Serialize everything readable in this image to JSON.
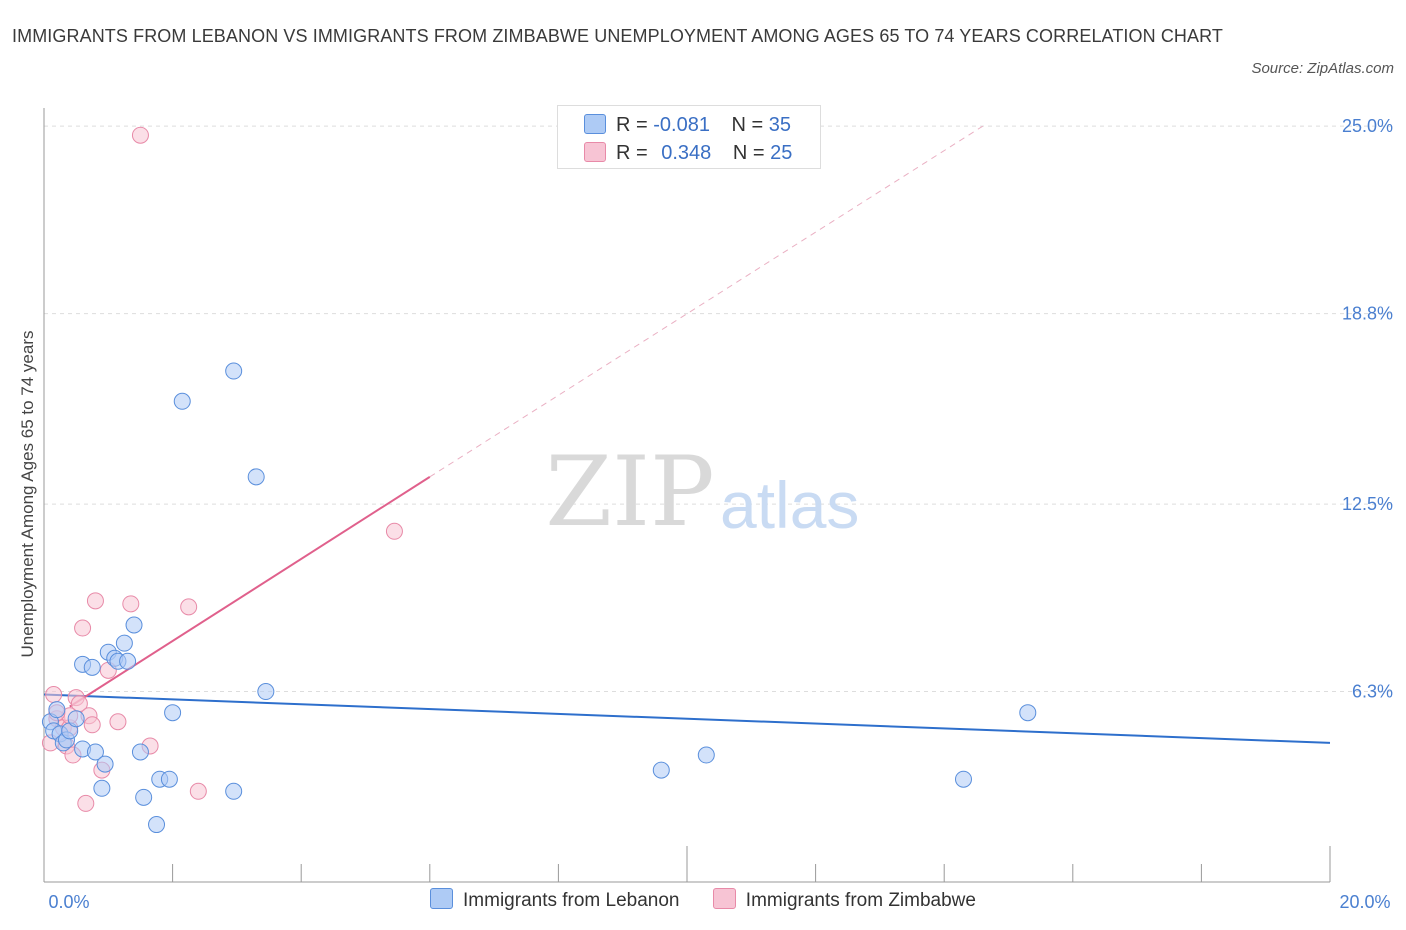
{
  "header": {
    "title": "IMMIGRANTS FROM LEBANON VS IMMIGRANTS FROM ZIMBABWE UNEMPLOYMENT AMONG AGES 65 TO 74 YEARS CORRELATION CHART",
    "source": "Source: ZipAtlas.com"
  },
  "watermark": {
    "zip": "ZIP",
    "atlas": "atlas"
  },
  "legend": {
    "r_label": "R =",
    "n_label": "N =",
    "series": [
      {
        "r": "-0.081",
        "n": "35"
      },
      {
        "r": "0.348",
        "n": "25"
      }
    ]
  },
  "colors": {
    "lebanon_fill": "#aecbf5",
    "lebanon_stroke": "#5a8fdc",
    "lebanon_line": "#2e6fcc",
    "zimbabwe_fill": "#f7c4d4",
    "zimbabwe_stroke": "#e88aa8",
    "zimbabwe_line": "#e0608c",
    "tick_text": "#4a7fd0",
    "grid": "#dddddd"
  },
  "chart_data": {
    "type": "scatter",
    "title": "IMMIGRANTS FROM LEBANON VS IMMIGRANTS FROM ZIMBABWE UNEMPLOYMENT AMONG AGES 65 TO 74 YEARS CORRELATION CHART",
    "xlabel": "",
    "ylabel": "Unemployment Among Ages 65 to 74 years",
    "xlim": [
      0,
      20
    ],
    "ylim": [
      0,
      25.6
    ],
    "x_tick_labels": [
      "0.0%",
      "20.0%"
    ],
    "y_ticks": [
      6.3,
      12.5,
      18.8,
      25.0
    ],
    "y_tick_labels": [
      "6.3%",
      "12.5%",
      "18.8%",
      "25.0%"
    ],
    "grid": true,
    "legend_position": "bottom-center",
    "series": [
      {
        "name": "Immigrants from Lebanon",
        "r": -0.081,
        "n": 35,
        "trend": {
          "x": [
            0,
            20
          ],
          "y": [
            6.2,
            4.6
          ]
        },
        "points": [
          [
            0.1,
            5.3
          ],
          [
            0.15,
            5.0
          ],
          [
            0.2,
            5.7
          ],
          [
            0.25,
            4.9
          ],
          [
            0.3,
            4.6
          ],
          [
            0.35,
            4.7
          ],
          [
            0.4,
            5.0
          ],
          [
            0.5,
            5.4
          ],
          [
            0.6,
            7.2
          ],
          [
            0.6,
            4.4
          ],
          [
            0.75,
            7.1
          ],
          [
            0.8,
            4.3
          ],
          [
            0.9,
            3.1
          ],
          [
            0.95,
            3.9
          ],
          [
            1.0,
            7.6
          ],
          [
            1.1,
            7.4
          ],
          [
            1.15,
            7.3
          ],
          [
            1.25,
            7.9
          ],
          [
            1.3,
            7.3
          ],
          [
            1.4,
            8.5
          ],
          [
            1.5,
            4.3
          ],
          [
            1.55,
            2.8
          ],
          [
            1.75,
            1.9
          ],
          [
            1.8,
            3.4
          ],
          [
            1.95,
            3.4
          ],
          [
            2.0,
            5.6
          ],
          [
            2.15,
            15.9
          ],
          [
            2.95,
            16.9
          ],
          [
            2.95,
            3.0
          ],
          [
            3.3,
            13.4
          ],
          [
            3.45,
            6.3
          ],
          [
            9.6,
            3.7
          ],
          [
            10.3,
            4.2
          ],
          [
            14.3,
            3.4
          ],
          [
            15.3,
            5.6
          ]
        ]
      },
      {
        "name": "Immigrants from Zimbabwe",
        "r": 0.348,
        "n": 25,
        "trend": {
          "x": [
            0.4,
            6.0
          ],
          "y": [
            5.8,
            13.4
          ]
        },
        "trend_extended": {
          "x": [
            6.0,
            14.6
          ],
          "y": [
            13.4,
            25.0
          ]
        },
        "points": [
          [
            0.1,
            4.6
          ],
          [
            0.15,
            6.2
          ],
          [
            0.2,
            5.4
          ],
          [
            0.3,
            5.1
          ],
          [
            0.35,
            4.5
          ],
          [
            0.4,
            5.1
          ],
          [
            0.45,
            4.2
          ],
          [
            0.5,
            6.1
          ],
          [
            0.55,
            5.9
          ],
          [
            0.6,
            8.4
          ],
          [
            0.65,
            2.6
          ],
          [
            0.7,
            5.5
          ],
          [
            0.75,
            5.2
          ],
          [
            0.8,
            9.3
          ],
          [
            0.9,
            3.7
          ],
          [
            1.0,
            7.0
          ],
          [
            1.15,
            5.3
          ],
          [
            1.35,
            9.2
          ],
          [
            1.65,
            4.5
          ],
          [
            1.5,
            24.7
          ],
          [
            2.25,
            9.1
          ],
          [
            2.4,
            3.0
          ],
          [
            5.45,
            11.6
          ],
          [
            0.4,
            5.5
          ],
          [
            0.2,
            5.6
          ]
        ]
      }
    ]
  }
}
